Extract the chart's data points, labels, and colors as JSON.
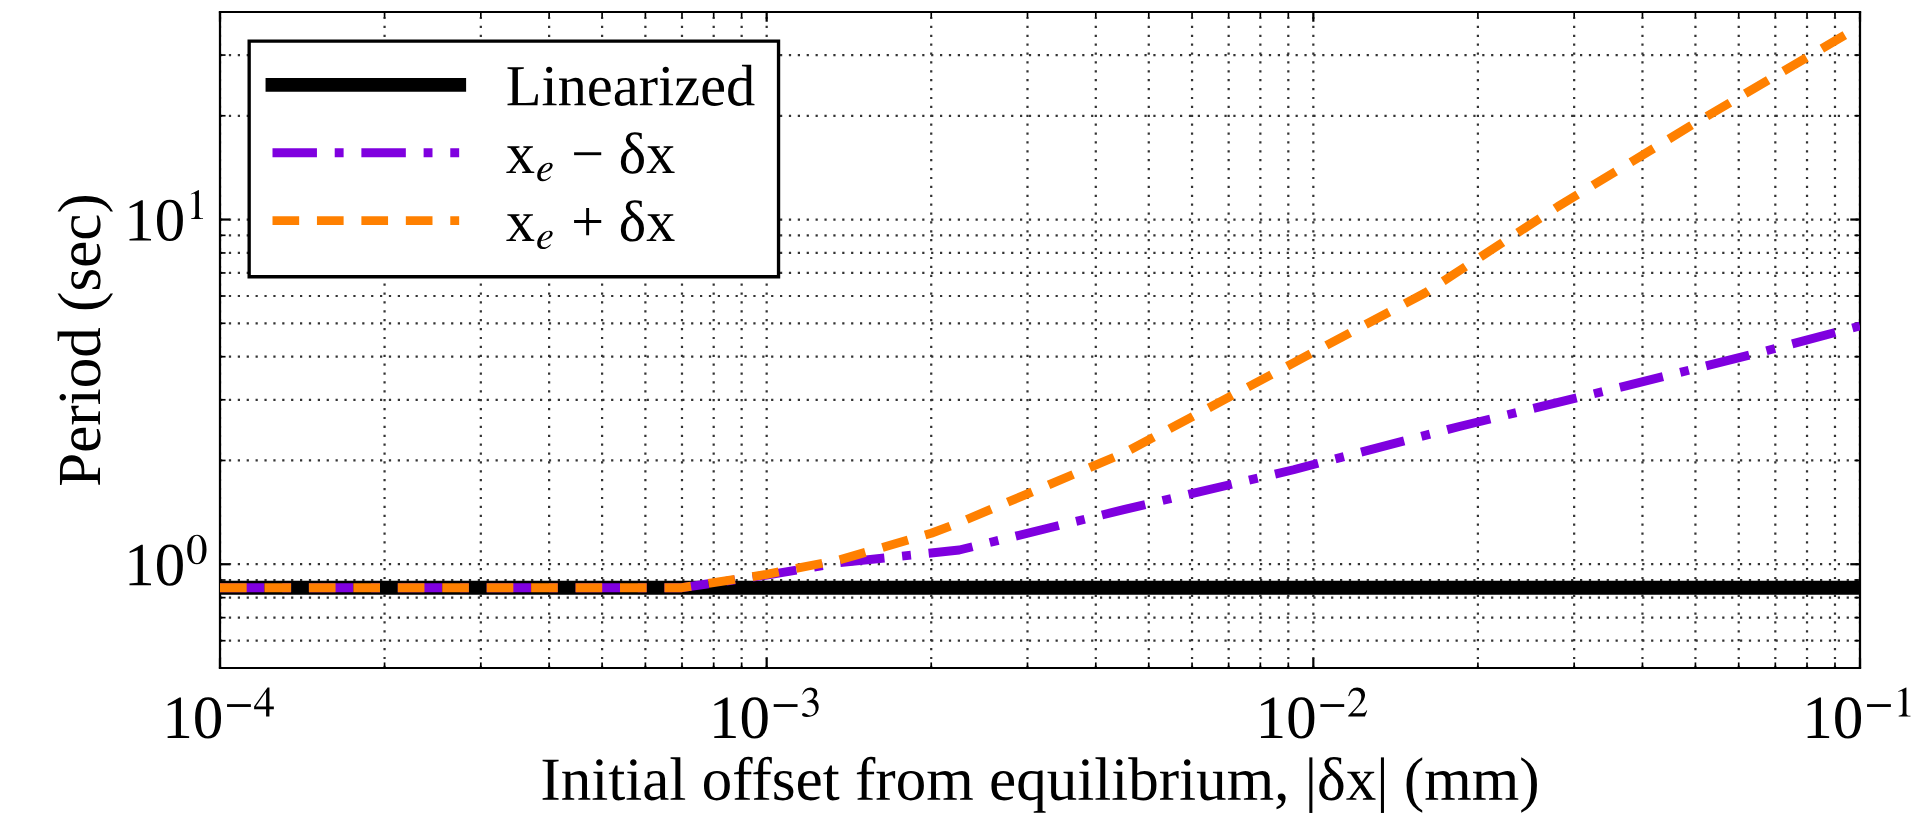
{
  "chart_data": {
    "type": "line",
    "xlabel": "Initial offset from equilibrium, |δx| (mm)",
    "ylabel": "Period (sec)",
    "log": "xy",
    "grid": true,
    "legend": "top left",
    "xlim": [
      0.0001,
      0.1
    ],
    "ylim": [
      0.5,
      40
    ],
    "xticks": [
      {
        "value": 0.0001,
        "label": "10$^{−4}$"
      },
      {
        "value": 0.001,
        "label": "10$^{−3}$"
      },
      {
        "value": 0.01,
        "label": "10$^{−2}$"
      },
      {
        "value": 0.1,
        "label": "10$^{−1}$"
      }
    ],
    "yticks": [
      {
        "value": 1,
        "label": "10$^{0}$"
      },
      {
        "value": 10,
        "label": "10$^{1}$"
      }
    ],
    "series": [
      {
        "name": "Linearized",
        "color": "#000000",
        "line_style": "solid",
        "x": [
          0.0001,
          0.1
        ],
        "values": [
          0.855,
          0.855
        ]
      },
      {
        "name": "x$_{e}$ − δx",
        "color": "#7f00df",
        "line_style": "dashdot",
        "x": [
          0.0001,
          0.0007,
          0.001,
          0.00136,
          0.00225,
          0.0045,
          0.0092,
          0.0185,
          0.037,
          0.065,
          0.1
        ],
        "values": [
          0.855,
          0.855,
          0.93,
          1.01,
          1.1,
          1.44,
          1.88,
          2.51,
          3.28,
          4.1,
          4.91
        ]
      },
      {
        "name": "x$_{e}$ + δx",
        "color": "#ff8000",
        "line_style": "dashed",
        "x": [
          0.0001,
          0.0007,
          0.001,
          0.00136,
          0.002,
          0.00225,
          0.0045,
          0.0092,
          0.016,
          0.028,
          0.049,
          0.1
        ],
        "values": [
          0.855,
          0.855,
          0.935,
          1.03,
          1.23,
          1.32,
          2.1,
          3.84,
          6.12,
          10.9,
          18.7,
          36.4
        ]
      }
    ]
  }
}
